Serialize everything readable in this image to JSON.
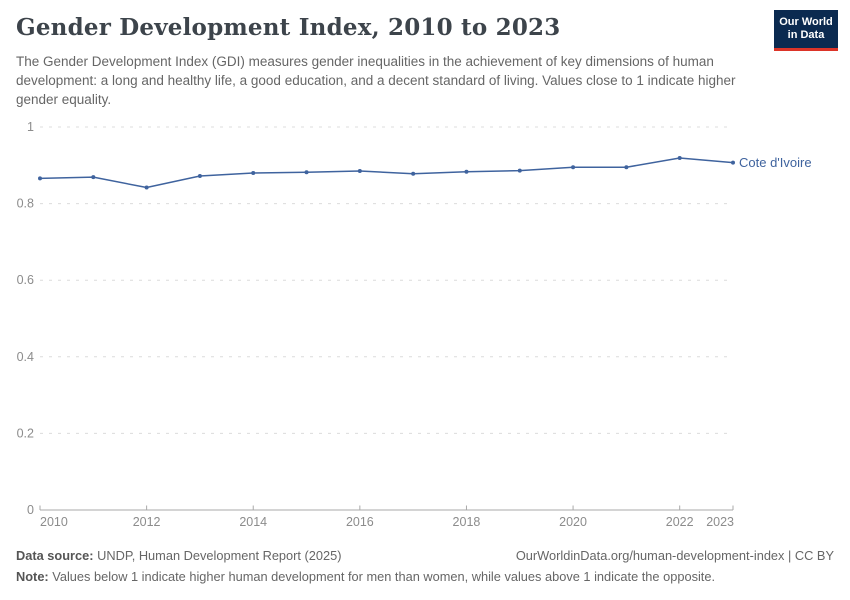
{
  "header": {
    "title": "Gender Development Index, 2010 to 2023",
    "subtitle": "The Gender Development Index (GDI) measures gender inequalities in the achievement of key dimensions of human development: a long and healthy life, a good education, and a decent standard of living. Values close to 1 indicate higher gender equality.",
    "logo": {
      "line1": "Our World",
      "line2": "in Data",
      "bg_color": "#0b2a50",
      "accent_color": "#dc3428"
    }
  },
  "chart_data": {
    "type": "line",
    "title": "Gender Development Index, 2010 to 2023",
    "x": [
      2010,
      2011,
      2012,
      2013,
      2014,
      2015,
      2016,
      2017,
      2018,
      2019,
      2020,
      2021,
      2022,
      2023
    ],
    "series": [
      {
        "name": "Cote d'Ivoire",
        "color": "#3f639e",
        "values": [
          0.866,
          0.869,
          0.842,
          0.872,
          0.88,
          0.882,
          0.885,
          0.878,
          0.883,
          0.886,
          0.895,
          0.895,
          0.919,
          0.907
        ]
      }
    ],
    "xlabel": "",
    "ylabel": "",
    "ylim": [
      0,
      1
    ],
    "yticks": [
      0,
      0.2,
      0.4,
      0.6,
      0.8,
      1
    ],
    "xticks": [
      2010,
      2012,
      2014,
      2016,
      2018,
      2020,
      2022,
      2023
    ],
    "grid": "horizontal-dashed",
    "legend": "label-at-line-end"
  },
  "colors": {
    "line": "#3f639e",
    "gridline": "#dcdcdc",
    "axis_line": "#a9a9a9",
    "tick_label": "#8c8c8c",
    "series_label": "#3f639e"
  },
  "footer": {
    "source_label": "Data source:",
    "source_text": "UNDP, Human Development Report (2025)",
    "link": "OurWorldinData.org/human-development-index | CC BY",
    "note_label": "Note:",
    "note_text": "Values below 1 indicate higher human development for men than women, while values above 1 indicate the opposite."
  }
}
